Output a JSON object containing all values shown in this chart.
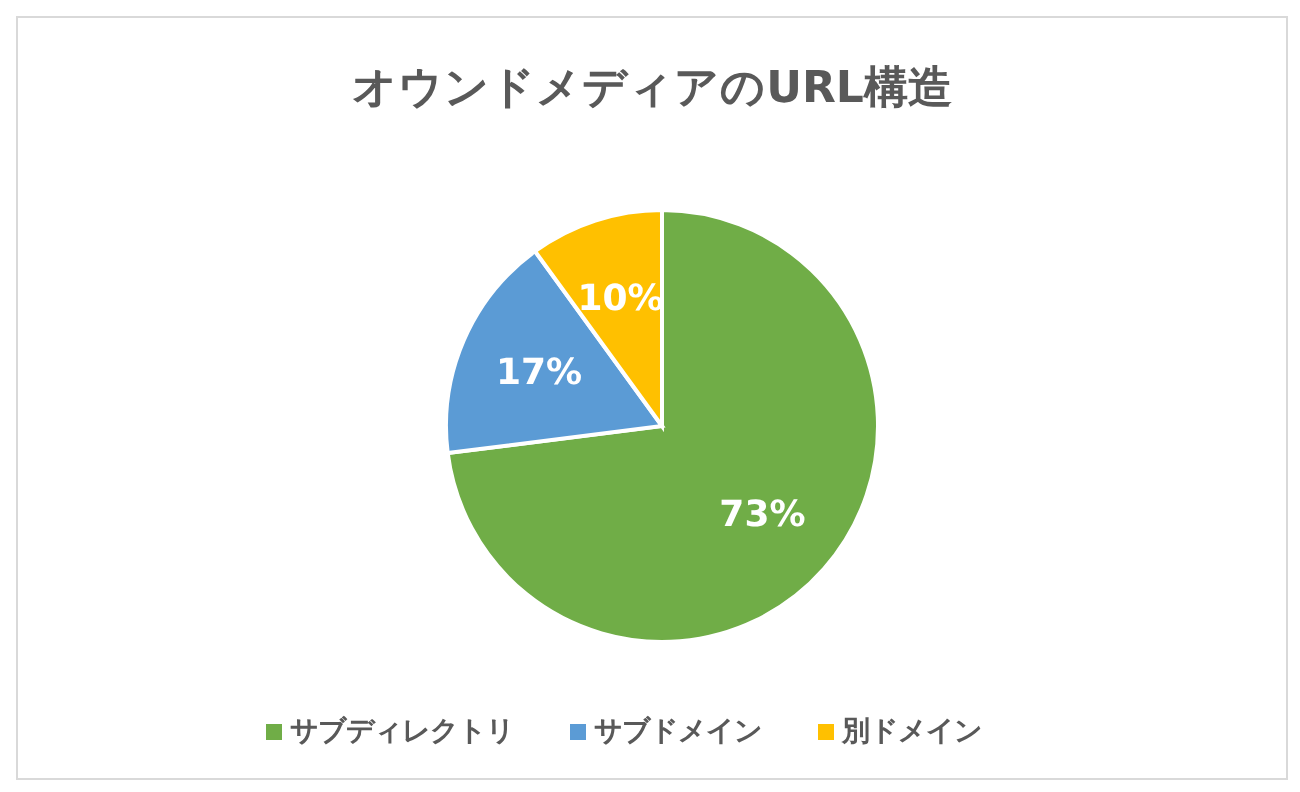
{
  "chart_data": {
    "type": "pie",
    "title": "オウンドメディアのURL構造",
    "categories": [
      "サブディレクトリ",
      "サブドメイン",
      "別ドメイン"
    ],
    "values": [
      73,
      17,
      10
    ],
    "colors": [
      "#70ad47",
      "#5b9bd5",
      "#ffc000"
    ],
    "value_labels": [
      "73%",
      "17%",
      "10%"
    ],
    "legend": "bottom"
  }
}
